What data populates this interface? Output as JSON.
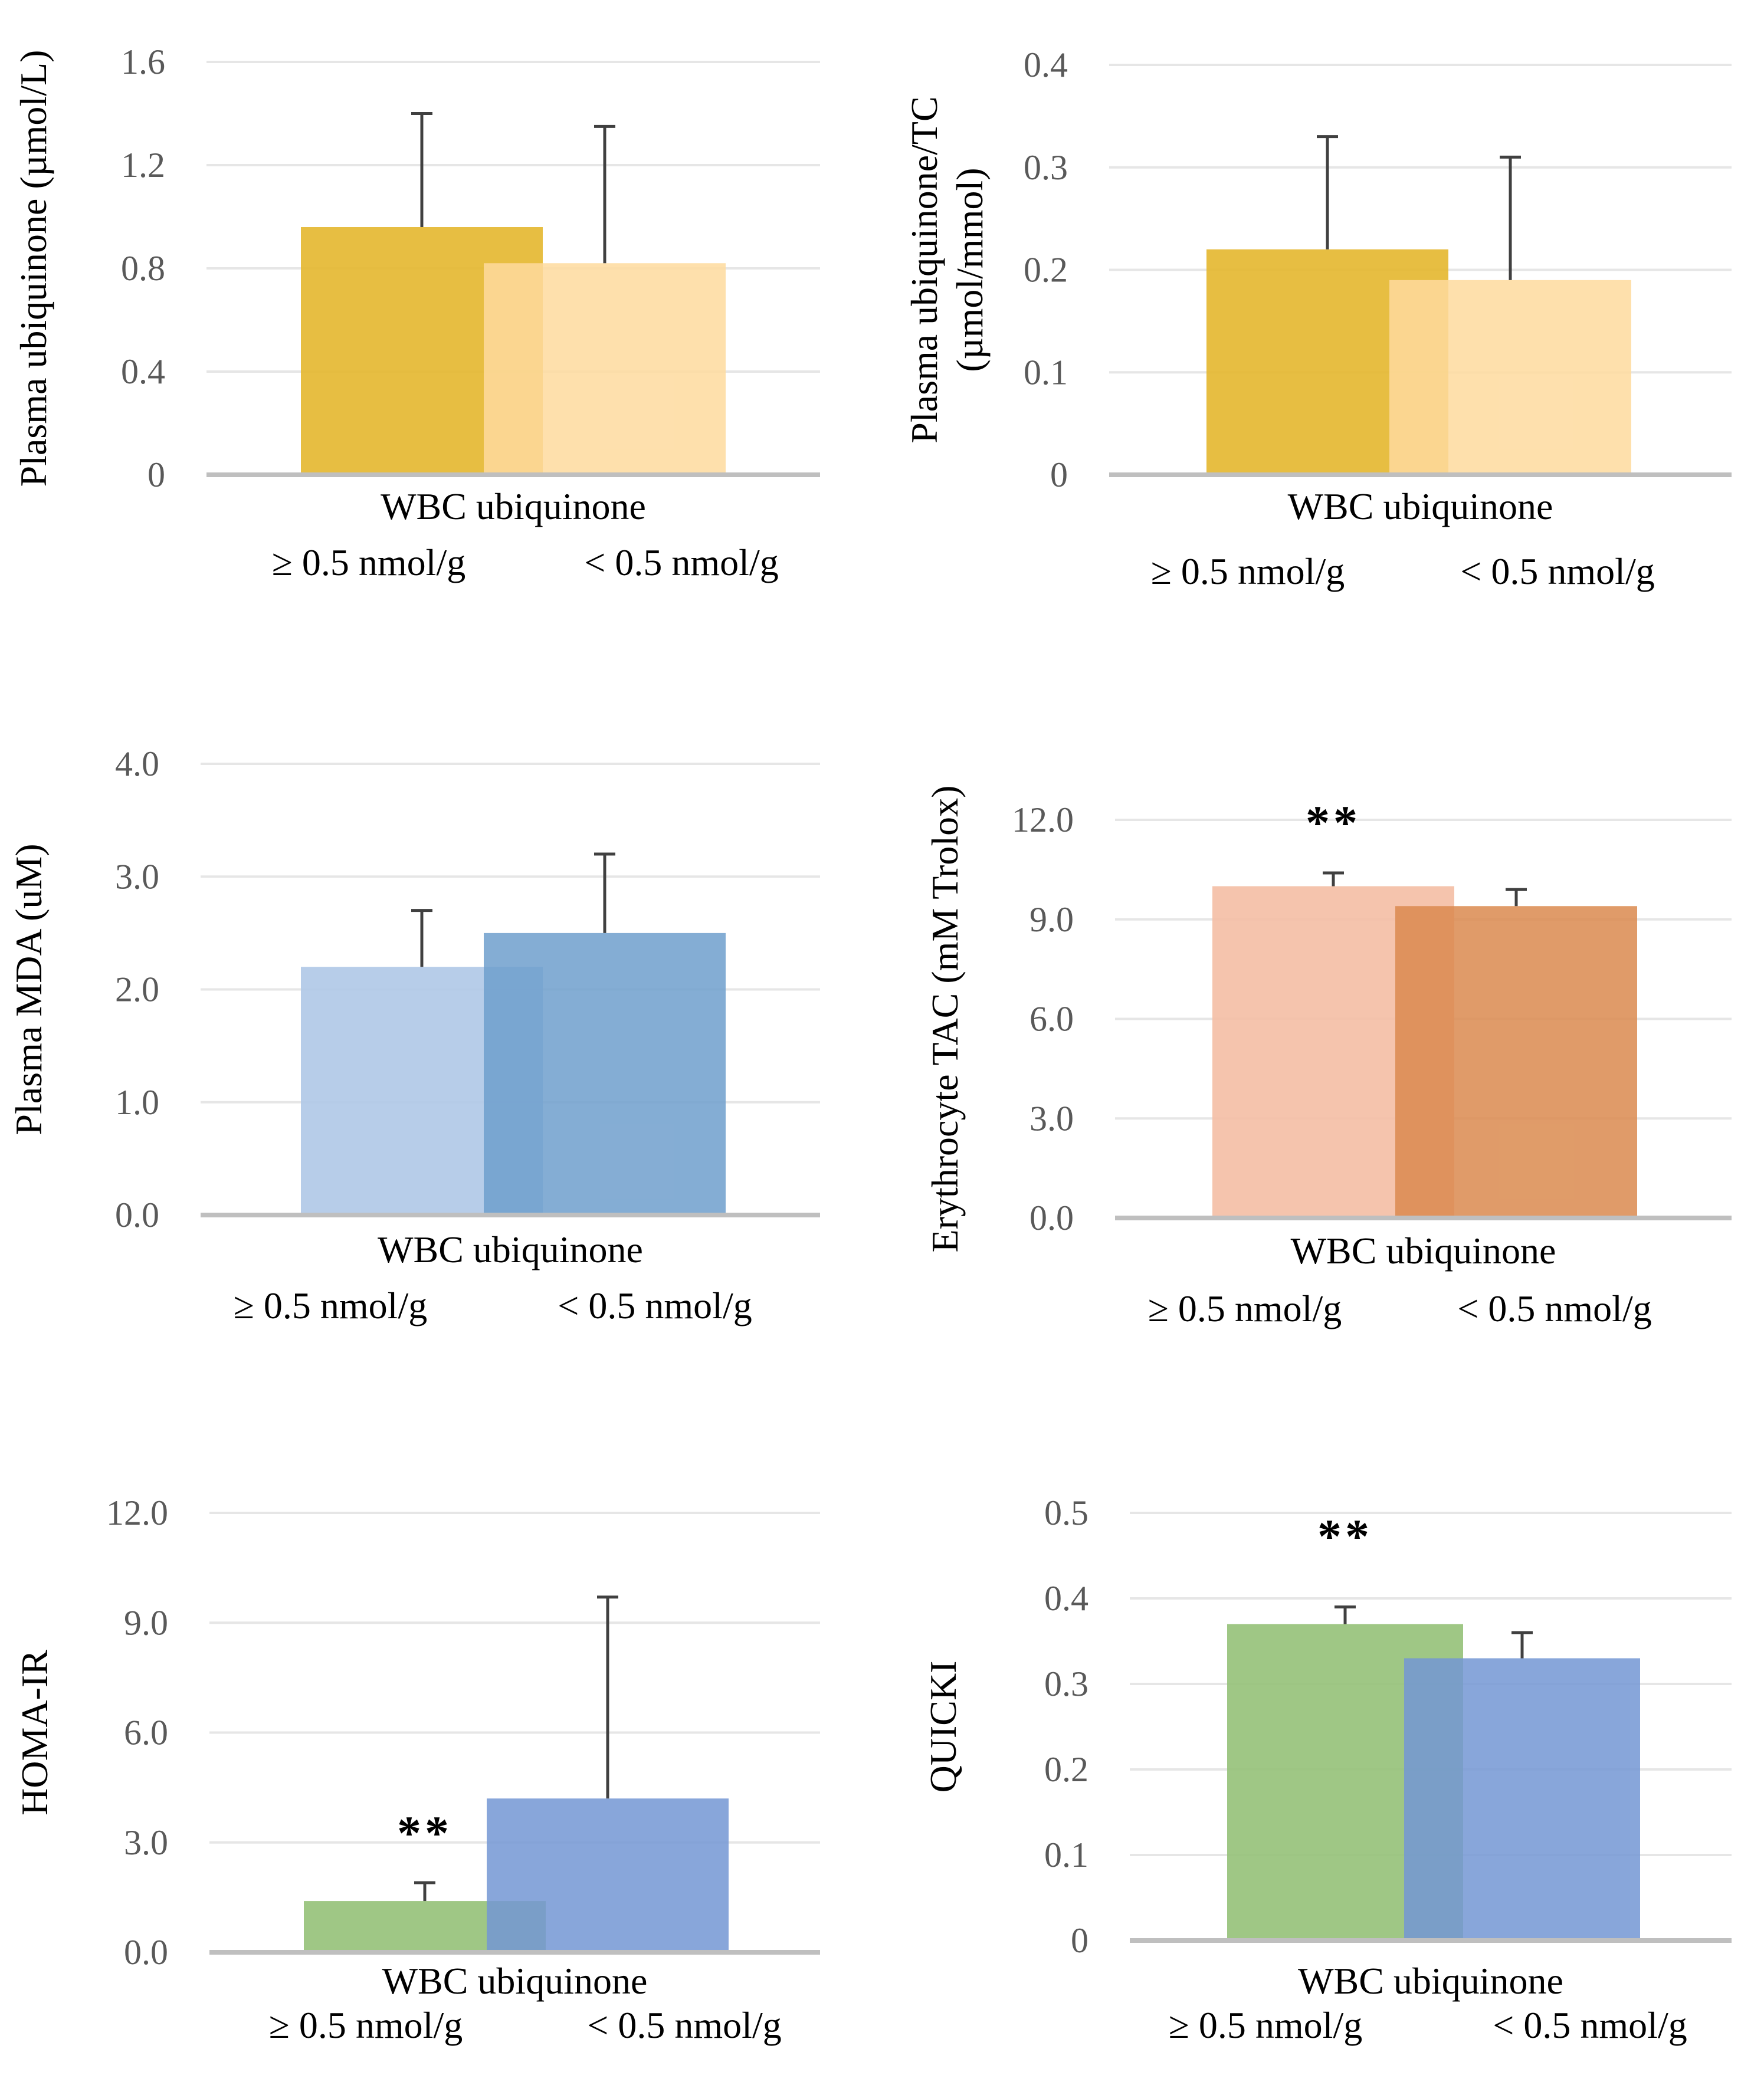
{
  "chart_data": [
    {
      "type": "bar",
      "ylabel": "Plasma ubiquinone (µmol/L)",
      "xlabel": "WBC ubiquinone",
      "categories": [
        "≥ 0.5 nmol/g",
        "< 0.5 nmol/g"
      ],
      "values": [
        0.96,
        0.82
      ],
      "errors": [
        0.44,
        0.53
      ],
      "ylim": [
        0,
        1.6
      ],
      "yticks": [
        "0",
        "0.4",
        "0.8",
        "1.2",
        "1.6"
      ],
      "significance": [
        "",
        ""
      ],
      "colors": [
        "#e5b832",
        "#fedb9e"
      ]
    },
    {
      "type": "bar",
      "ylabel": "Plasma ubiquinone/TC",
      "ylabel2": "(µmol/mmol)",
      "xlabel": "WBC ubiquinone",
      "categories": [
        "≥ 0.5 nmol/g",
        "< 0.5 nmol/g"
      ],
      "values": [
        0.22,
        0.19
      ],
      "errors": [
        0.11,
        0.12
      ],
      "ylim": [
        0,
        0.4
      ],
      "yticks": [
        "0",
        "0.1",
        "0.2",
        "0.3",
        "0.4"
      ],
      "significance": [
        "",
        ""
      ],
      "colors": [
        "#e5b832",
        "#fedb9e"
      ]
    },
    {
      "type": "bar",
      "ylabel": "Plasma MDA (uM)",
      "xlabel": "WBC ubiquinone",
      "categories": [
        "≥ 0.5 nmol/g",
        "< 0.5 nmol/g"
      ],
      "values": [
        2.2,
        2.5
      ],
      "errors": [
        0.5,
        0.7
      ],
      "ylim": [
        0,
        4.0
      ],
      "yticks": [
        "0.0",
        "1.0",
        "2.0",
        "3.0",
        "4.0"
      ],
      "significance": [
        "",
        ""
      ],
      "colors": [
        "#b1c9e7",
        "#6f9fcc"
      ]
    },
    {
      "type": "bar",
      "ylabel": "Erythrocyte TAC (mM Trolox)",
      "xlabel": "WBC ubiquinone",
      "categories": [
        "≥ 0.5 nmol/g",
        "< 0.5 nmol/g"
      ],
      "values": [
        10.0,
        9.4
      ],
      "errors": [
        0.4,
        0.5
      ],
      "ylim": [
        0,
        12.0
      ],
      "yticks": [
        "0.0",
        "3.0",
        "6.0",
        "9.0",
        "12.0"
      ],
      "significance": [
        "**",
        ""
      ],
      "colors": [
        "#f4bfa6",
        "#db8a4f"
      ]
    },
    {
      "type": "bar",
      "ylabel": "HOMA-IR",
      "xlabel": "WBC ubiquinone",
      "categories": [
        "≥ 0.5 nmol/g",
        "< 0.5 nmol/g"
      ],
      "values": [
        1.4,
        4.2
      ],
      "errors": [
        0.5,
        5.5
      ],
      "ylim": [
        0,
        12.0
      ],
      "yticks": [
        "0.0",
        "3.0",
        "6.0",
        "9.0",
        "12.0"
      ],
      "significance": [
        "**",
        ""
      ],
      "colors": [
        "#97c27b",
        "#7396d4"
      ]
    },
    {
      "type": "bar",
      "ylabel": "QUICKI",
      "xlabel": "WBC ubiquinone",
      "categories": [
        "≥ 0.5 nmol/g",
        "< 0.5 nmol/g"
      ],
      "values": [
        0.37,
        0.33
      ],
      "errors": [
        0.02,
        0.03
      ],
      "ylim": [
        0,
        0.5
      ],
      "yticks": [
        "0",
        "0.1",
        "0.2",
        "0.3",
        "0.4",
        "0.5"
      ],
      "significance": [
        "**",
        ""
      ],
      "colors": [
        "#97c27b",
        "#7396d4"
      ]
    }
  ]
}
